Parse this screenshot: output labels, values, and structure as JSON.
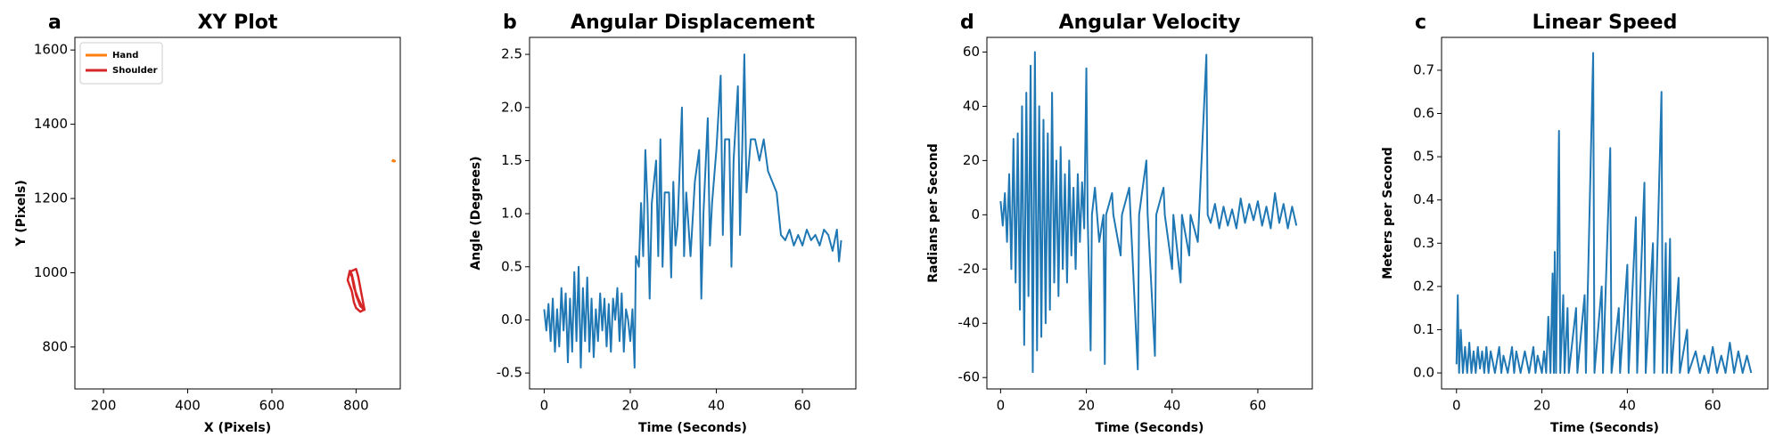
{
  "chart_data": [
    {
      "type": "line",
      "panel_label": "a",
      "title": "XY Plot",
      "xlabel": "X (Pixels)",
      "ylabel": "Y (Pixels)",
      "xlim": [
        132,
        905
      ],
      "ylim": [
        687,
        1634
      ],
      "xticks": [
        200,
        400,
        600,
        800
      ],
      "yticks": [
        800,
        1000,
        1200,
        1400,
        1600
      ],
      "legend": "upper left",
      "series": [
        {
          "name": "Hand",
          "color": "#ff7f0e",
          "x": [
            885,
            890,
            892,
            888,
            886
          ],
          "values": [
            1302,
            1300,
            1301,
            1303,
            1300
          ]
        },
        {
          "name": "Shoulder",
          "color": "#d62728",
          "x": [
            785,
            790,
            800,
            805,
            815,
            820,
            810,
            800,
            795,
            790,
            785,
            780,
            790,
            795,
            800,
            810,
            818,
            805,
            795,
            790,
            785
          ],
          "values": [
            1000,
            1005,
            1010,
            990,
            930,
            900,
            910,
            940,
            970,
            995,
            1005,
            980,
            950,
            920,
            905,
            895,
            900,
            930,
            960,
            990,
            1000
          ]
        }
      ]
    },
    {
      "type": "line",
      "panel_label": "b",
      "title": "Angular Displacement",
      "xlabel": "Time (Seconds)",
      "ylabel": "Angle (Degrees)",
      "xlim": [
        -3.4,
        72.4
      ],
      "ylim": [
        -0.65,
        2.66
      ],
      "xticks": [
        0,
        20,
        40,
        60
      ],
      "yticks": [
        -0.5,
        {
          "value": 0,
          "label": "0.0"
        },
        0.5,
        {
          "value": 1,
          "label": "1.0"
        },
        1.5,
        {
          "value": 2,
          "label": "2.0"
        },
        2.5
      ],
      "color": "#1f77b4",
      "x": [
        0,
        0.5,
        1,
        1.5,
        2,
        2.5,
        3,
        3.5,
        4,
        4.5,
        5,
        5.5,
        6,
        6.5,
        7,
        7.5,
        8,
        8.5,
        9,
        9.5,
        10,
        10.5,
        11,
        11.5,
        12,
        12.5,
        13,
        13.5,
        14,
        14.5,
        15,
        15.5,
        16,
        16.5,
        17,
        17.5,
        18,
        18.5,
        19,
        19.5,
        20,
        20.5,
        21,
        21.3,
        22,
        22.5,
        23,
        23.5,
        24,
        24.5,
        25,
        26,
        26.5,
        27,
        27.5,
        28,
        29,
        29.5,
        30,
        30.5,
        31,
        32,
        32.5,
        33,
        34,
        35,
        36,
        36.5,
        37,
        38,
        38.5,
        39,
        40,
        41,
        41.5,
        42,
        43,
        43.5,
        44,
        45,
        45.5,
        46,
        46.5,
        47,
        48,
        49,
        50,
        51,
        52,
        53,
        54,
        55,
        56,
        57,
        58,
        59,
        60,
        61,
        62,
        63,
        64,
        65,
        66,
        67,
        68,
        68.5,
        69
      ],
      "values": [
        0.1,
        -0.1,
        0.15,
        -0.2,
        0.2,
        -0.3,
        0.1,
        -0.25,
        0.3,
        -0.1,
        0.25,
        -0.4,
        0.2,
        -0.3,
        0.45,
        -0.2,
        0.5,
        -0.45,
        0.3,
        -0.2,
        0.4,
        -0.3,
        0.2,
        -0.35,
        0.1,
        -0.2,
        0.25,
        -0.1,
        0.2,
        -0.25,
        0.15,
        -0.3,
        0.2,
        0.0,
        0.3,
        -0.2,
        0.25,
        -0.3,
        0.1,
        0.0,
        -0.2,
        0.1,
        -0.45,
        0.6,
        0.5,
        1.1,
        0.6,
        1.6,
        1.1,
        0.2,
        1.1,
        1.5,
        0.6,
        1.7,
        0.5,
        1.2,
        1.2,
        0.4,
        1.3,
        0.7,
        0.9,
        2.0,
        0.6,
        1.2,
        0.6,
        1.3,
        1.6,
        0.2,
        1.0,
        1.9,
        0.7,
        1.1,
        1.6,
        2.3,
        0.8,
        1.7,
        1.7,
        0.5,
        1.5,
        2.2,
        0.8,
        1.6,
        2.5,
        1.2,
        1.7,
        1.7,
        1.5,
        1.7,
        1.4,
        1.3,
        1.2,
        0.8,
        0.75,
        0.85,
        0.7,
        0.8,
        0.7,
        0.85,
        0.75,
        0.8,
        0.7,
        0.85,
        0.8,
        0.65,
        0.85,
        0.55,
        0.75
      ]
    },
    {
      "type": "line",
      "panel_label": "d",
      "title": "Angular Velocity",
      "xlabel": "Time (Seconds)",
      "ylabel": "Radians per Second",
      "xlim": [
        -3.2,
        72.7
      ],
      "ylim": [
        -64.2,
        65.4
      ],
      "xticks": [
        0,
        20,
        40,
        60
      ],
      "yticks": [
        -60,
        -40,
        -20,
        0,
        20,
        40,
        60
      ],
      "color": "#1f77b4",
      "x": [
        0,
        0.5,
        1,
        1.5,
        2,
        2.5,
        3,
        3.5,
        4,
        4.5,
        5,
        5.5,
        6,
        6.5,
        7,
        7.5,
        8,
        8.5,
        9,
        9.5,
        10,
        10.5,
        11,
        11.5,
        12,
        12.5,
        13,
        13.5,
        14,
        14.5,
        15,
        15.5,
        16,
        16.5,
        17,
        17.5,
        18,
        18.5,
        19,
        19.5,
        20,
        20.3,
        21,
        21.3,
        22,
        23,
        24,
        24.3,
        24.6,
        26,
        26.3,
        28,
        28.3,
        30,
        30.3,
        32,
        32.3,
        34,
        34.3,
        36,
        36.3,
        38,
        38.3,
        40,
        40.3,
        42,
        42.3,
        44,
        44.3,
        46,
        46.3,
        48,
        48.3,
        49,
        50,
        51,
        52,
        53,
        54,
        55,
        56,
        57,
        58,
        59,
        60,
        61,
        62,
        63,
        64,
        65,
        66,
        67,
        68,
        69
      ],
      "values": [
        5,
        -4,
        8,
        -10,
        15,
        -20,
        28,
        -25,
        30,
        -35,
        40,
        -48,
        45,
        -30,
        55,
        -58,
        60,
        -50,
        40,
        -45,
        35,
        -40,
        30,
        -35,
        45,
        -25,
        20,
        -30,
        25,
        -20,
        15,
        -25,
        20,
        -15,
        10,
        -20,
        15,
        -10,
        12,
        -5,
        54,
        0,
        -50,
        0,
        10,
        -10,
        0,
        -55,
        0,
        8,
        0,
        -15,
        0,
        10,
        0,
        -57,
        0,
        20,
        0,
        -52,
        0,
        10,
        0,
        -20,
        0,
        -25,
        0,
        -15,
        0,
        -10,
        0,
        59,
        0,
        -3,
        4,
        -5,
        3,
        -4,
        2,
        -5,
        6,
        -3,
        4,
        -2,
        5,
        -4,
        3,
        -5,
        8,
        -3,
        4,
        -5,
        3,
        -4
      ]
    },
    {
      "type": "line",
      "panel_label": "c",
      "title": "Linear Speed",
      "xlabel": "Time (Seconds)",
      "ylabel": "Meters per Second",
      "xlim": [
        -3.5,
        72.9
      ],
      "ylim": [
        -0.037,
        0.776
      ],
      "xticks": [
        0,
        20,
        40,
        60
      ],
      "yticks": [
        {
          "value": 0,
          "label": "0.0"
        },
        0.1,
        0.2,
        0.3,
        0.4,
        0.5,
        0.6,
        0.7
      ],
      "color": "#1f77b4",
      "x": [
        0,
        0.3,
        0.6,
        1,
        1.5,
        2,
        2.5,
        3,
        3.5,
        4,
        4.5,
        5,
        5.5,
        6,
        6.5,
        7,
        7.5,
        8,
        9,
        10,
        10.5,
        11,
        12,
        13,
        13.5,
        14,
        15,
        16,
        17,
        18,
        18.5,
        19,
        20,
        20.5,
        21,
        21.5,
        22,
        22.5,
        22.8,
        23,
        23.3,
        24,
        24.3,
        25,
        25.3,
        26,
        26.3,
        28,
        28.3,
        30,
        30.3,
        32,
        32.3,
        34,
        34.3,
        36,
        36.3,
        38,
        38.3,
        40,
        40.3,
        42,
        42.3,
        44,
        44.3,
        46,
        46.3,
        48,
        48.3,
        49,
        49.3,
        50,
        50.3,
        52,
        52.3,
        54,
        54.3,
        56,
        57,
        58,
        59,
        60,
        61,
        62,
        63,
        64,
        65,
        66,
        67,
        68,
        69
      ],
      "values": [
        0.02,
        0.18,
        0,
        0.1,
        0,
        0.06,
        0,
        0.07,
        0,
        0.05,
        0,
        0.06,
        0.01,
        0.05,
        0,
        0.06,
        0,
        0.05,
        0,
        0.06,
        0,
        0.04,
        0,
        0.06,
        0,
        0.05,
        0,
        0.05,
        0,
        0.06,
        0,
        0.04,
        0,
        0.05,
        0,
        0.13,
        0,
        0.23,
        0,
        0.28,
        0,
        0.56,
        0,
        0.18,
        0,
        0.15,
        0,
        0.15,
        0,
        0.18,
        0,
        0.74,
        0,
        0.2,
        0,
        0.52,
        0,
        0.15,
        0,
        0.25,
        0,
        0.36,
        0,
        0.44,
        0,
        0.3,
        0,
        0.65,
        0,
        0.3,
        0,
        0.31,
        0,
        0.22,
        0,
        0.1,
        0,
        0.05,
        0,
        0.04,
        0,
        0.06,
        0,
        0.04,
        0,
        0.07,
        0,
        0.05,
        0,
        0.04,
        0
      ]
    }
  ]
}
